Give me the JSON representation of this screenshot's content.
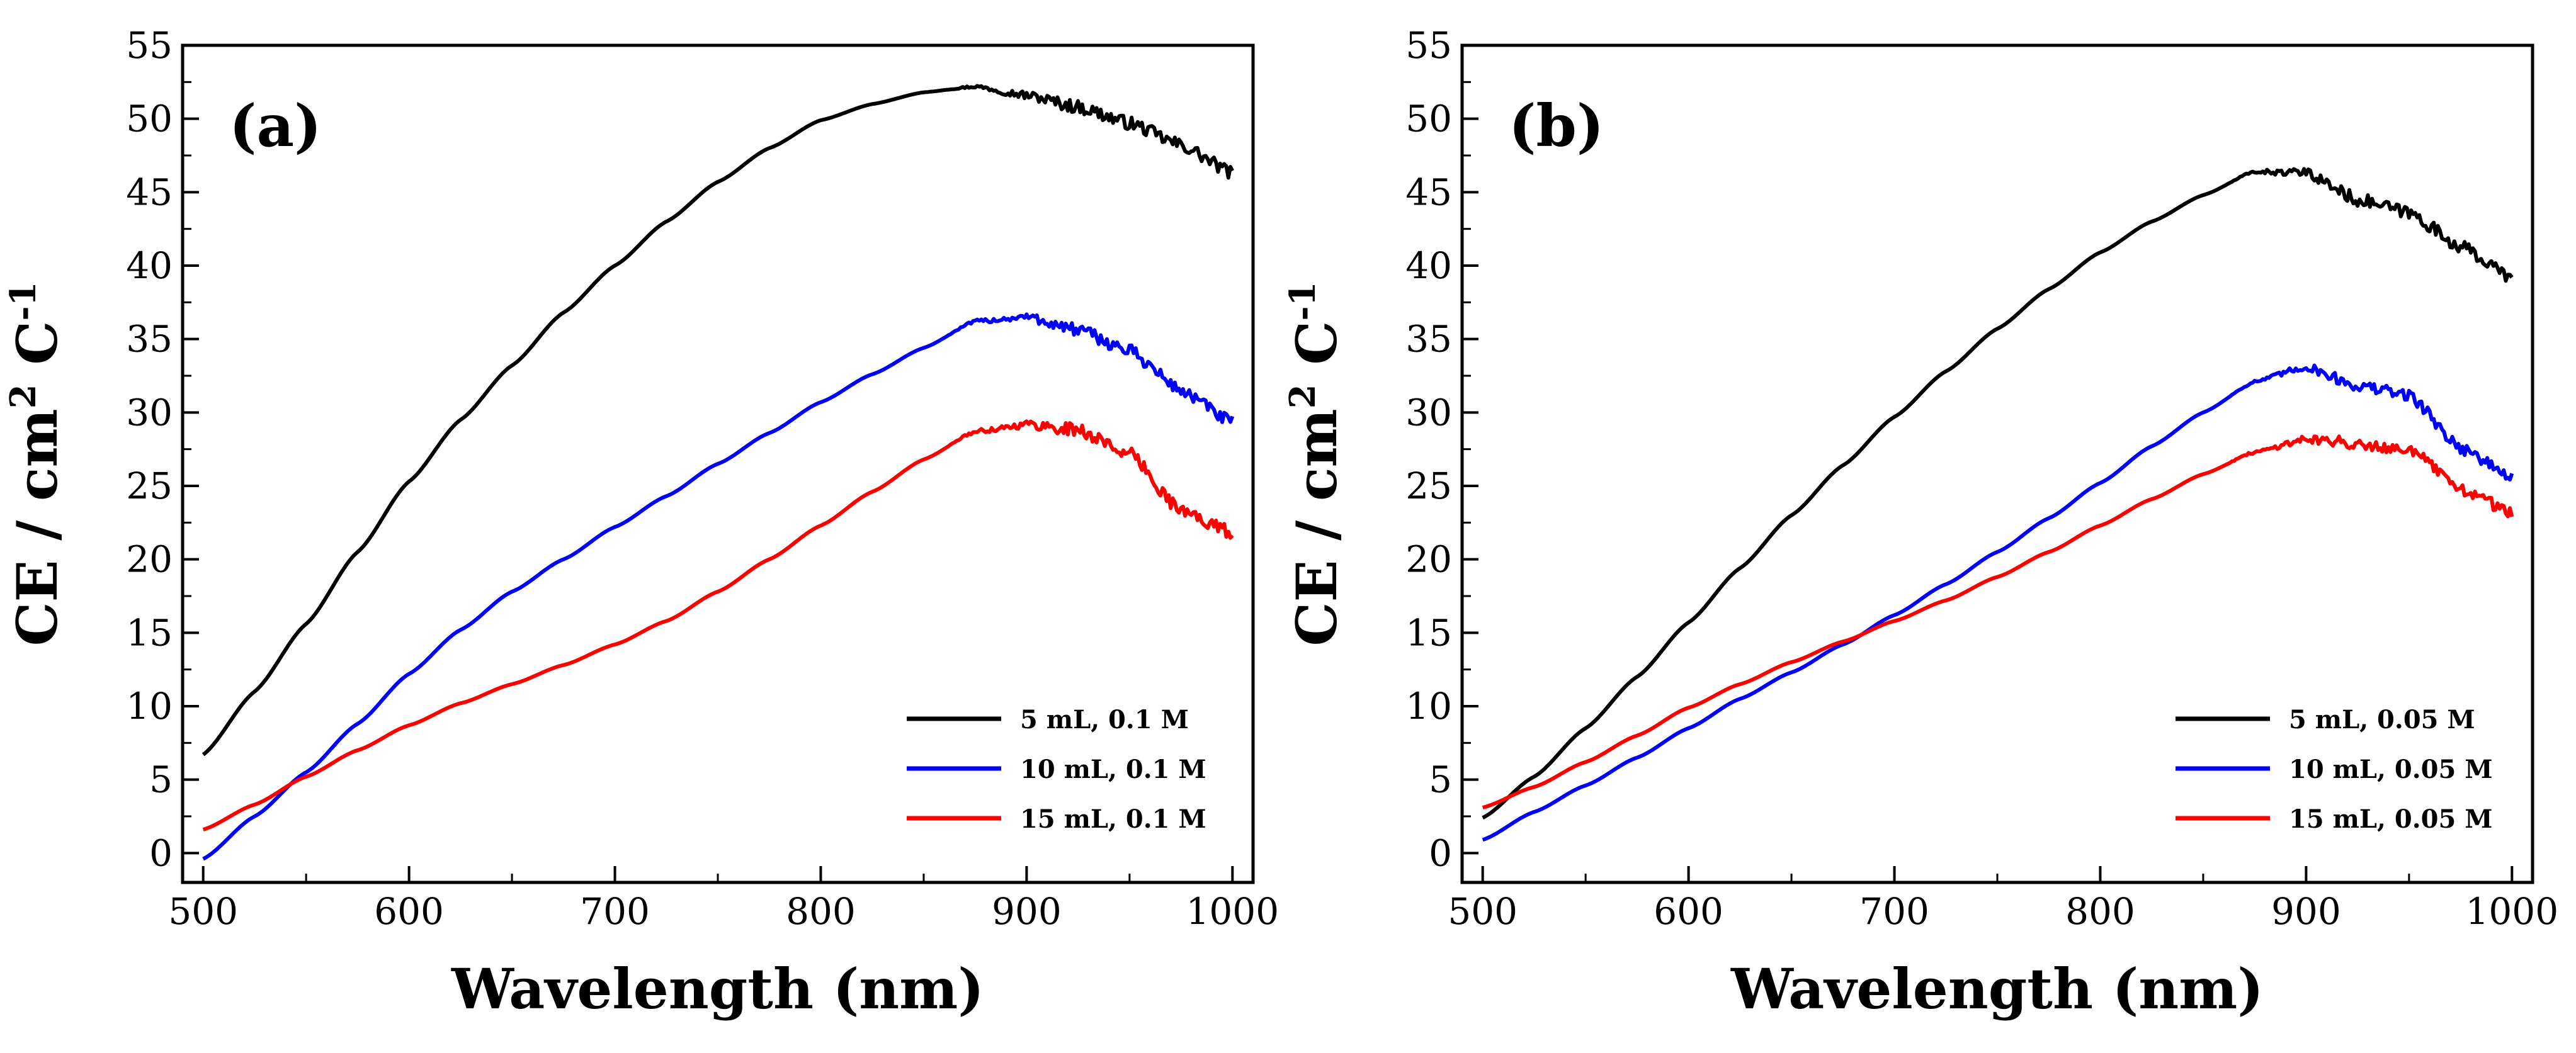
{
  "chart_data": [
    {
      "type": "line",
      "panel_label": "(a)",
      "xlabel": "Wavelength (nm)",
      "ylabel": "CE / cm",
      "ylabel_sup1": "2",
      "ylabel_mid": " C",
      "ylabel_sup2": "-1",
      "xlim": [
        490,
        1010
      ],
      "ylim": [
        -2,
        55
      ],
      "xticks": [
        500,
        600,
        700,
        800,
        900,
        1000
      ],
      "yticks": [
        0,
        5,
        10,
        15,
        20,
        25,
        30,
        35,
        40,
        45,
        50,
        55
      ],
      "legend_position": "bottom-right",
      "series": [
        {
          "name": "5 mL, 0.1 M",
          "color": "#000000",
          "points": [
            [
              500,
              6.7
            ],
            [
              525,
              11
            ],
            [
              550,
              15.6
            ],
            [
              575,
              20.5
            ],
            [
              600,
              25.3
            ],
            [
              625,
              29.5
            ],
            [
              650,
              33.2
            ],
            [
              675,
              36.8
            ],
            [
              700,
              40
            ],
            [
              725,
              43
            ],
            [
              750,
              45.7
            ],
            [
              775,
              48
            ],
            [
              800,
              49.9
            ],
            [
              825,
              51
            ],
            [
              850,
              51.8
            ],
            [
              875,
              52.2
            ],
            [
              900,
              51.6
            ],
            [
              925,
              50.8
            ],
            [
              950,
              49.7
            ],
            [
              975,
              48.2
            ],
            [
              1000,
              46.3
            ]
          ],
          "noise": 0.45
        },
        {
          "name": "10 mL, 0.1 M",
          "color": "#0000ff",
          "points": [
            [
              500,
              -0.4
            ],
            [
              525,
              2.5
            ],
            [
              550,
              5.5
            ],
            [
              575,
              8.8
            ],
            [
              600,
              12.2
            ],
            [
              625,
              15.2
            ],
            [
              650,
              17.8
            ],
            [
              675,
              20
            ],
            [
              700,
              22.2
            ],
            [
              725,
              24.3
            ],
            [
              750,
              26.5
            ],
            [
              775,
              28.6
            ],
            [
              800,
              30.7
            ],
            [
              825,
              32.6
            ],
            [
              850,
              34.4
            ],
            [
              875,
              36.2
            ],
            [
              900,
              36.5
            ],
            [
              925,
              35.6
            ],
            [
              950,
              34.2
            ],
            [
              975,
              31.5
            ],
            [
              1000,
              29.3
            ]
          ],
          "noise": 0.45
        },
        {
          "name": "15 mL, 0.1 M",
          "color": "#ff0000",
          "points": [
            [
              500,
              1.6
            ],
            [
              525,
              3.3
            ],
            [
              550,
              5.2
            ],
            [
              575,
              7
            ],
            [
              600,
              8.7
            ],
            [
              625,
              10.2
            ],
            [
              650,
              11.5
            ],
            [
              675,
              12.8
            ],
            [
              700,
              14.2
            ],
            [
              725,
              15.8
            ],
            [
              750,
              17.8
            ],
            [
              775,
              20
            ],
            [
              800,
              22.3
            ],
            [
              825,
              24.6
            ],
            [
              850,
              26.8
            ],
            [
              875,
              28.7
            ],
            [
              900,
              29.2
            ],
            [
              925,
              28.8
            ],
            [
              950,
              27.2
            ],
            [
              975,
              23.3
            ],
            [
              1000,
              21.8
            ]
          ],
          "noise": 0.45
        }
      ]
    },
    {
      "type": "line",
      "panel_label": "(b)",
      "xlabel": "Wavelength (nm)",
      "ylabel": "CE / cm",
      "ylabel_sup1": "2",
      "ylabel_mid": " C",
      "ylabel_sup2": "-1",
      "xlim": [
        490,
        1010
      ],
      "ylim": [
        -2,
        55
      ],
      "xticks": [
        500,
        600,
        700,
        800,
        900,
        1000
      ],
      "yticks": [
        0,
        5,
        10,
        15,
        20,
        25,
        30,
        35,
        40,
        45,
        50,
        55
      ],
      "legend_position": "bottom-right",
      "series": [
        {
          "name": "5 mL, 0.05 M",
          "color": "#000000",
          "points": [
            [
              500,
              2.4
            ],
            [
              525,
              5.2
            ],
            [
              550,
              8.5
            ],
            [
              575,
              12
            ],
            [
              600,
              15.7
            ],
            [
              625,
              19.4
            ],
            [
              650,
              23
            ],
            [
              675,
              26.4
            ],
            [
              700,
              29.7
            ],
            [
              725,
              32.8
            ],
            [
              750,
              35.7
            ],
            [
              775,
              38.4
            ],
            [
              800,
              40.9
            ],
            [
              825,
              43
            ],
            [
              850,
              44.8
            ],
            [
              875,
              46.4
            ],
            [
              900,
              46.3
            ],
            [
              925,
              44.5
            ],
            [
              950,
              43.6
            ],
            [
              975,
              41.3
            ],
            [
              1000,
              39.2
            ]
          ],
          "noise": 0.45
        },
        {
          "name": "10 mL, 0.05 M",
          "color": "#0000ff",
          "points": [
            [
              500,
              0.9
            ],
            [
              525,
              2.8
            ],
            [
              550,
              4.6
            ],
            [
              575,
              6.5
            ],
            [
              600,
              8.5
            ],
            [
              625,
              10.5
            ],
            [
              650,
              12.3
            ],
            [
              675,
              14.2
            ],
            [
              700,
              16.2
            ],
            [
              725,
              18.3
            ],
            [
              750,
              20.5
            ],
            [
              775,
              22.8
            ],
            [
              800,
              25.2
            ],
            [
              825,
              27.7
            ],
            [
              850,
              30
            ],
            [
              875,
              32.1
            ],
            [
              900,
              33.1
            ],
            [
              925,
              31.8
            ],
            [
              950,
              31.2
            ],
            [
              975,
              27.6
            ],
            [
              1000,
              25.6
            ]
          ],
          "noise": 0.4
        },
        {
          "name": "15 mL, 0.05 M",
          "color": "#ff0000",
          "points": [
            [
              500,
              3.1
            ],
            [
              525,
              4.5
            ],
            [
              550,
              6.2
            ],
            [
              575,
              8
            ],
            [
              600,
              9.9
            ],
            [
              625,
              11.5
            ],
            [
              650,
              13
            ],
            [
              675,
              14.4
            ],
            [
              700,
              15.8
            ],
            [
              725,
              17.2
            ],
            [
              750,
              18.8
            ],
            [
              775,
              20.5
            ],
            [
              800,
              22.3
            ],
            [
              825,
              24.1
            ],
            [
              850,
              25.8
            ],
            [
              875,
              27.3
            ],
            [
              900,
              28.2
            ],
            [
              925,
              27.9
            ],
            [
              950,
              27.5
            ],
            [
              975,
              24.8
            ],
            [
              1000,
              23.2
            ]
          ],
          "noise": 0.4
        }
      ]
    }
  ]
}
